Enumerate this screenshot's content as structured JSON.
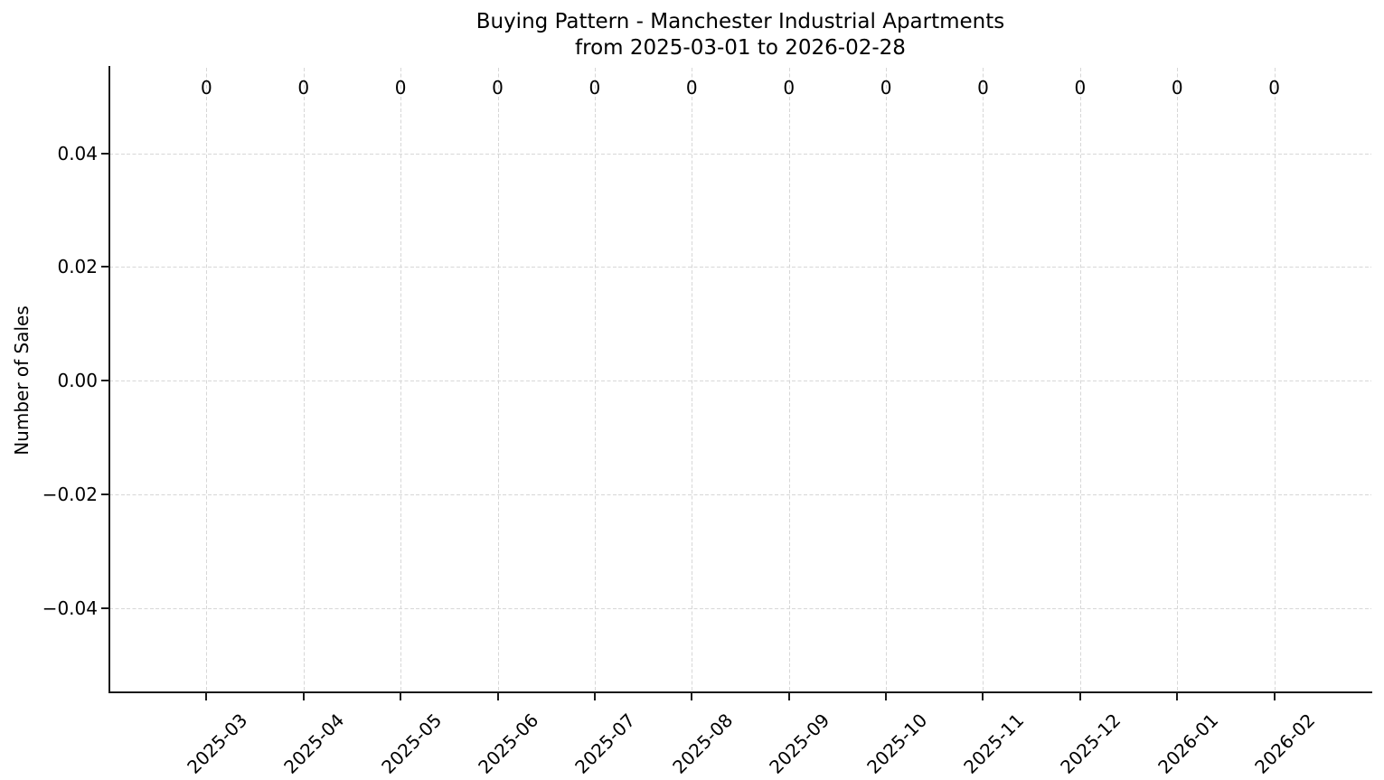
{
  "chart_data": {
    "type": "bar",
    "title": "Buying Pattern - Manchester Industrial Apartments",
    "subtitle": "from 2025-03-01 to 2026-02-28",
    "ylabel": "Number of Sales",
    "xlabel": "",
    "categories": [
      "2025-03",
      "2025-04",
      "2025-05",
      "2025-06",
      "2025-07",
      "2025-08",
      "2025-09",
      "2025-10",
      "2025-11",
      "2025-12",
      "2026-01",
      "2026-02"
    ],
    "values": [
      0,
      0,
      0,
      0,
      0,
      0,
      0,
      0,
      0,
      0,
      0,
      0
    ],
    "bar_labels": [
      "0",
      "0",
      "0",
      "0",
      "0",
      "0",
      "0",
      "0",
      "0",
      "0",
      "0",
      "0"
    ],
    "yticks": [
      0.04,
      0.02,
      0.0,
      -0.02,
      -0.04
    ],
    "ytick_labels": [
      "0.04",
      "0.02",
      "0.00",
      "−0.02",
      "−0.04"
    ],
    "ylim": [
      -0.055,
      0.055
    ],
    "grid": true,
    "grid_style": "dashed",
    "legend": null,
    "colors": {
      "background": "#ffffff",
      "text": "#000000",
      "spine": "#1a1a1a",
      "grid": "#d7d7d7"
    }
  }
}
